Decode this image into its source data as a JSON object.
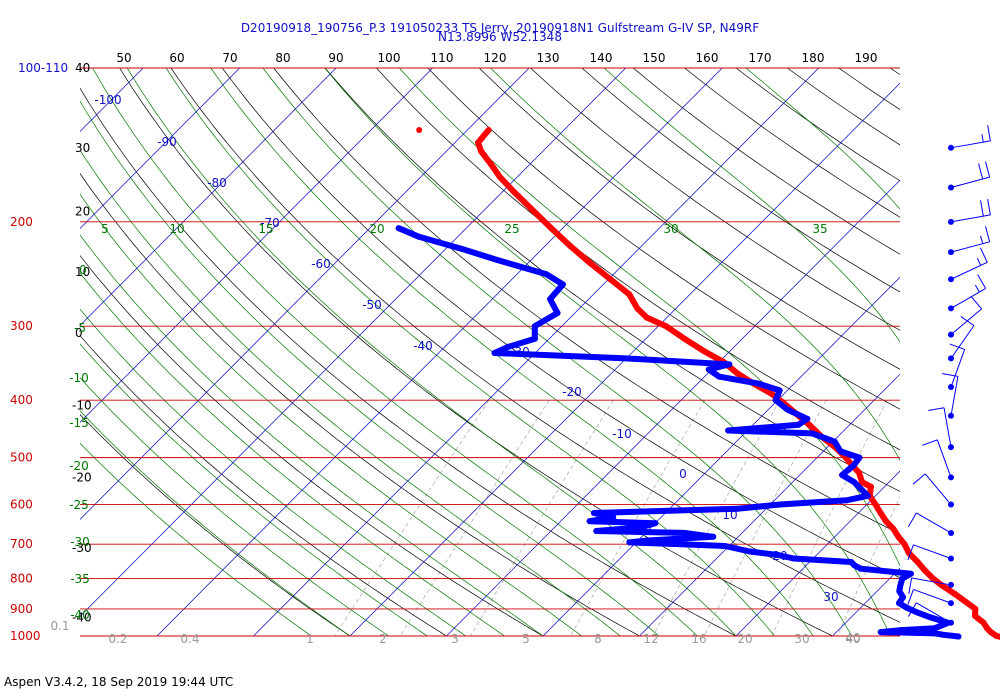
{
  "chart_data": {
    "type": "skew-t",
    "title_line1": "D20190918_190756_P.3 191050233 TS Jerry, 20190918N1 Gulfstream G-IV SP, N49RF",
    "title_line2": "N13.8996 W52.1348",
    "footer": "Aspen V3.4.2, 18 Sep 2019  19:44 UTC",
    "pressure_labels": [
      {
        "p": 110,
        "text": "100-110"
      },
      {
        "p": 200,
        "text": "200"
      },
      {
        "p": 300,
        "text": "300"
      },
      {
        "p": 400,
        "text": "400"
      },
      {
        "p": 500,
        "text": "500"
      },
      {
        "p": 600,
        "text": "600"
      },
      {
        "p": 700,
        "text": "700"
      },
      {
        "p": 800,
        "text": "800"
      },
      {
        "p": 900,
        "text": "900"
      },
      {
        "p": 1000,
        "text": "1000"
      }
    ],
    "height_labels": [
      {
        "p": 110,
        "text": "40"
      },
      {
        "p": 150,
        "text": "30"
      },
      {
        "p": 192,
        "text": "20"
      },
      {
        "p": 243,
        "text": "10"
      },
      {
        "p": 308,
        "text": "0"
      },
      {
        "p": 408,
        "text": "-10"
      },
      {
        "p": 540,
        "text": "-20"
      },
      {
        "p": 710,
        "text": "-30"
      },
      {
        "p": 930,
        "text": "-40"
      }
    ],
    "top_labels": [
      "50",
      "60",
      "70",
      "80",
      "90",
      "100",
      "110",
      "120",
      "130",
      "140",
      "150",
      "160",
      "170",
      "180",
      "190"
    ],
    "diag_labels_left": [
      "-100",
      "-90",
      "-80",
      "-70",
      "-60",
      "-50",
      "-40"
    ],
    "diag_labels_right": [
      "-30",
      "-20",
      "-10",
      "0",
      "10",
      "20",
      "30",
      "40"
    ],
    "green_left_labels": [
      "0",
      "-5",
      "-10",
      "-15",
      "-20",
      "-25",
      "-30",
      "-35",
      "-40"
    ],
    "green_top_labels": [
      "5",
      "10",
      "15",
      "20",
      "25",
      "30",
      "35"
    ],
    "mixing_labels": [
      "0.1",
      "0.2",
      "0.4",
      "1",
      "2",
      "3",
      "5",
      "8",
      "12",
      "16",
      "20",
      "30",
      "40"
    ],
    "temperature_c": [
      [
        1008,
        28.2
      ],
      [
        1000,
        27.0
      ],
      [
        985,
        26.0
      ],
      [
        970,
        25.2
      ],
      [
        950,
        24.3
      ],
      [
        925,
        22.7
      ],
      [
        900,
        22.0
      ],
      [
        880,
        20.6
      ],
      [
        850,
        18.4
      ],
      [
        820,
        16.0
      ],
      [
        800,
        14.5
      ],
      [
        775,
        12.8
      ],
      [
        750,
        11.2
      ],
      [
        725,
        9.4
      ],
      [
        700,
        8.0
      ],
      [
        680,
        6.6
      ],
      [
        660,
        5.3
      ],
      [
        640,
        3.7
      ],
      [
        620,
        2.3
      ],
      [
        600,
        0.9
      ],
      [
        580,
        -0.6
      ],
      [
        560,
        -1.4
      ],
      [
        550,
        -2.8
      ],
      [
        530,
        -4.1
      ],
      [
        515,
        -5.6
      ],
      [
        500,
        -7.0
      ],
      [
        480,
        -9.2
      ],
      [
        460,
        -11.8
      ],
      [
        440,
        -14.2
      ],
      [
        420,
        -16.9
      ],
      [
        405,
        -19.0
      ],
      [
        390,
        -21.3
      ],
      [
        375,
        -24.2
      ],
      [
        360,
        -27.0
      ],
      [
        345,
        -29.5
      ],
      [
        330,
        -32.8
      ],
      [
        315,
        -36.0
      ],
      [
        300,
        -39.2
      ],
      [
        290,
        -42.1
      ],
      [
        280,
        -44.0
      ],
      [
        265,
        -46.3
      ],
      [
        250,
        -49.8
      ],
      [
        235,
        -53.5
      ],
      [
        220,
        -57.3
      ],
      [
        205,
        -61.2
      ],
      [
        190,
        -65.3
      ],
      [
        178,
        -68.8
      ],
      [
        168,
        -71.8
      ],
      [
        160,
        -74.0
      ],
      [
        152,
        -76.4
      ],
      [
        147,
        -77.6
      ],
      [
        140,
        -77.8
      ]
    ],
    "dewpoint_c": [
      [
        1002,
        23.1
      ],
      [
        995,
        21.3
      ],
      [
        990,
        20.4
      ],
      [
        985,
        14.6
      ],
      [
        978,
        16.3
      ],
      [
        970,
        19.8
      ],
      [
        950,
        20.6
      ],
      [
        930,
        18.2
      ],
      [
        912,
        16.3
      ],
      [
        895,
        14.7
      ],
      [
        880,
        13.5
      ],
      [
        860,
        13.3
      ],
      [
        840,
        12.3
      ],
      [
        825,
        11.9
      ],
      [
        800,
        11.3
      ],
      [
        785,
        11.7
      ],
      [
        770,
        6.0
      ],
      [
        760,
        5.0
      ],
      [
        750,
        4.3
      ],
      [
        740,
        -2.0
      ],
      [
        730,
        -4.0
      ],
      [
        720,
        -7.3
      ],
      [
        705,
        -10.4
      ],
      [
        700,
        -15.1
      ],
      [
        695,
        -20.7
      ],
      [
        690,
        -19.0
      ],
      [
        680,
        -12.6
      ],
      [
        670,
        -16.0
      ],
      [
        665,
        -25.3
      ],
      [
        655,
        -21.0
      ],
      [
        645,
        -20.0
      ],
      [
        640,
        -27.0
      ],
      [
        630,
        -25.0
      ],
      [
        620,
        -27.4
      ],
      [
        610,
        -13.0
      ],
      [
        600,
        -9.0
      ],
      [
        590,
        -2.5
      ],
      [
        580,
        -0.8
      ],
      [
        565,
        -2.2
      ],
      [
        550,
        -3.6
      ],
      [
        535,
        -5.6
      ],
      [
        515,
        -5.4
      ],
      [
        500,
        -5.6
      ],
      [
        488,
        -8.2
      ],
      [
        470,
        -9.8
      ],
      [
        455,
        -13.0
      ],
      [
        450,
        -22.0
      ],
      [
        440,
        -15.3
      ],
      [
        430,
        -15.0
      ],
      [
        415,
        -18.0
      ],
      [
        400,
        -20.2
      ],
      [
        385,
        -20.8
      ],
      [
        375,
        -23.7
      ],
      [
        365,
        -28.5
      ],
      [
        355,
        -30.3
      ],
      [
        348,
        -28.7
      ],
      [
        340,
        -40.0
      ],
      [
        333,
        -54.2
      ],
      [
        325,
        -53.4
      ],
      [
        315,
        -51.5
      ],
      [
        300,
        -52.8
      ],
      [
        285,
        -51.8
      ],
      [
        270,
        -54.0
      ],
      [
        255,
        -54.2
      ],
      [
        245,
        -57.0
      ],
      [
        232,
        -63.5
      ],
      [
        222,
        -68.4
      ],
      [
        212,
        -74.0
      ],
      [
        205,
        -77.0
      ]
    ],
    "extra_point": {
      "p": 140,
      "t": -85.0,
      "label": ""
    },
    "wind_barbs": [
      {
        "p": 150,
        "dir": 260,
        "kt": 15
      },
      {
        "p": 175,
        "dir": 255,
        "kt": 20
      },
      {
        "p": 200,
        "dir": 260,
        "kt": 20
      },
      {
        "p": 225,
        "dir": 255,
        "kt": 15
      },
      {
        "p": 250,
        "dir": 245,
        "kt": 15
      },
      {
        "p": 280,
        "dir": 240,
        "kt": 15
      },
      {
        "p": 310,
        "dir": 230,
        "kt": 10
      },
      {
        "p": 340,
        "dir": 215,
        "kt": 10
      },
      {
        "p": 380,
        "dir": 200,
        "kt": 10
      },
      {
        "p": 425,
        "dir": 190,
        "kt": 10
      },
      {
        "p": 480,
        "dir": 170,
        "kt": 10
      },
      {
        "p": 540,
        "dir": 160,
        "kt": 10
      },
      {
        "p": 600,
        "dir": 140,
        "kt": 10
      },
      {
        "p": 670,
        "dir": 120,
        "kt": 10
      },
      {
        "p": 740,
        "dir": 110,
        "kt": 10
      },
      {
        "p": 820,
        "dir": 100,
        "kt": 10
      },
      {
        "p": 880,
        "dir": 110,
        "kt": 10
      },
      {
        "p": 950,
        "dir": 120,
        "kt": 10
      }
    ],
    "colors": {
      "temperature": "#ff0000",
      "dewpoint": "#0000ff",
      "isobar": "#cc0000",
      "isotherm": "#0000cc",
      "dry_adiabat": "#000000",
      "moist_adiabat": "#007700",
      "mixing_ratio": "#999999",
      "barb": "#0000ff"
    }
  }
}
